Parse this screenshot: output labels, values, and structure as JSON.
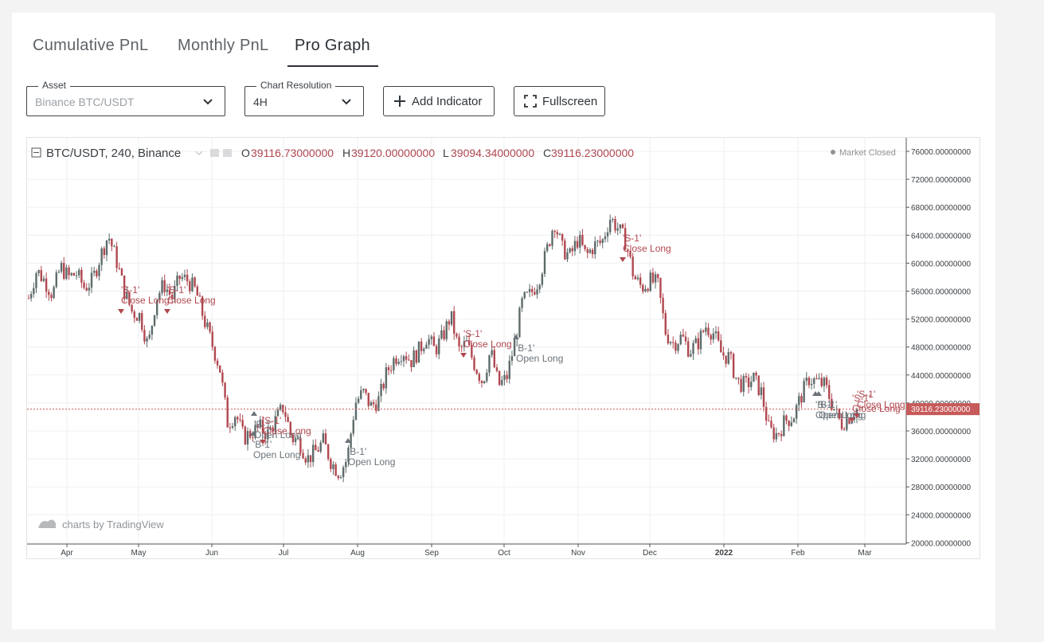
{
  "tabs": [
    {
      "label": "Cumulative PnL",
      "active": false
    },
    {
      "label": "Monthly PnL",
      "active": false
    },
    {
      "label": "Pro Graph",
      "active": true
    }
  ],
  "asset": {
    "legend": "Asset",
    "value": "Binance BTC/USDT"
  },
  "resolution": {
    "legend": "Chart Resolution",
    "value": "4H"
  },
  "buttons": {
    "add_indicator": "Add Indicator",
    "fullscreen": "Fullscreen"
  },
  "chart_header": {
    "symbol": "BTC/USDT, 240, Binance",
    "o_label": "O",
    "o": "39116.73000000",
    "h_label": "H",
    "h": "39120.00000000",
    "l_label": "L",
    "l": "39094.34000000",
    "c_label": "C",
    "c": "39116.23000000",
    "market_status": "Market Closed"
  },
  "watermark": "charts by TradingView",
  "colors": {
    "up": "#5d6b6a",
    "down": "#b0474f",
    "last_price": "#c75a5a",
    "accent": "#2d3136"
  },
  "chart_data": {
    "type": "candlestick",
    "symbol": "BTC/USDT",
    "resolution": "240",
    "exchange": "Binance",
    "last_price": 39116.23,
    "last_price_label": "39116.23000000",
    "y_ticks": [
      "76000.00000000",
      "72000.00000000",
      "68000.00000000",
      "64000.00000000",
      "60000.00000000",
      "56000.00000000",
      "52000.00000000",
      "48000.00000000",
      "44000.00000000",
      "40000.00000000",
      "36000.00000000",
      "32000.00000000",
      "28000.00000000",
      "24000.00000000",
      "20000.00000000"
    ],
    "x_ticks": [
      "Apr",
      "May",
      "Jun",
      "Jul",
      "Aug",
      "Sep",
      "Oct",
      "Nov",
      "Dec",
      "2022",
      "Feb",
      "Mar"
    ],
    "series_close": [
      55000,
      59000,
      57500,
      55500,
      59500,
      58000,
      58500,
      56500,
      57500,
      61000,
      64000,
      60500,
      56000,
      53000,
      52500,
      48000,
      55000,
      57000,
      55000,
      58000,
      57500,
      56000,
      52000,
      48500,
      45000,
      37000,
      38500,
      35000,
      35800,
      36500,
      35500,
      37500,
      39500,
      35000,
      34500,
      32000,
      33000,
      34500,
      31500,
      30000,
      32000,
      40000,
      41500,
      39500,
      40500,
      44500,
      46500,
      47500,
      46000,
      47500,
      49500,
      47500,
      49500,
      52500,
      47500,
      48500,
      45500,
      43000,
      47500,
      42500,
      43500,
      48500,
      54500,
      55500,
      57500,
      61500,
      66000,
      62000,
      61000,
      63500,
      61000,
      62500,
      63000,
      66500,
      65000,
      63000,
      58000,
      56500,
      57500,
      57000,
      50000,
      48500,
      49500,
      47500,
      48500,
      51000,
      50000,
      47000,
      46500,
      43000,
      42500,
      43500,
      41500,
      36000,
      35500,
      37500,
      38000,
      41000,
      43500,
      43000,
      42500,
      39500,
      37000,
      38000,
      39116
    ],
    "signals": [
      {
        "label": "'S-1' Close Long",
        "kind": "sell"
      },
      {
        "label": "'S-1' Close Long",
        "kind": "sell"
      },
      {
        "label": "'B-1' Open Long",
        "kind": "buy"
      },
      {
        "label": "'S-1' Close Long",
        "kind": "sell"
      },
      {
        "label": "'B-1' Open Long",
        "kind": "buy"
      },
      {
        "label": "'B-1' Open Long",
        "kind": "buy"
      },
      {
        "label": "'S-1' Close Long",
        "kind": "sell"
      },
      {
        "label": "'B-1' Open Long",
        "kind": "buy"
      },
      {
        "label": "'S-1' Close Long",
        "kind": "sell"
      },
      {
        "label": "'B-1' Open Long",
        "kind": "buy"
      },
      {
        "label": "'S-1' Close Long",
        "kind": "sell"
      },
      {
        "label": "'B-1' Open Long",
        "kind": "buy"
      },
      {
        "label": "'S-1' Close Long",
        "kind": "sell"
      }
    ]
  }
}
